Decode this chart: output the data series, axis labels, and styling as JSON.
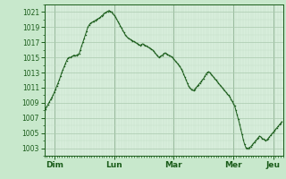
{
  "background_color": "#c8e8cc",
  "plot_bg_color": "#d8eedc",
  "grid_major_color": "#aacaae",
  "grid_minor_color": "#c0dcc4",
  "line_color": "#1a5c1a",
  "marker_color": "#1a5c1a",
  "ylabel_values": [
    1003,
    1005,
    1007,
    1009,
    1011,
    1013,
    1015,
    1017,
    1019,
    1021
  ],
  "ylim": [
    1002.0,
    1022.0
  ],
  "xlim": [
    0,
    192
  ],
  "x_ticks": [
    8,
    56,
    104,
    152,
    184
  ],
  "x_tick_labels": [
    "Dim",
    "Lun",
    "Mar",
    "Mer",
    "Jeu"
  ],
  "day_lines_x": [
    8,
    56,
    104,
    152,
    184
  ],
  "pressure_data": [
    1008.0,
    1008.2,
    1008.5,
    1008.8,
    1009.1,
    1009.4,
    1009.7,
    1010.0,
    1010.4,
    1010.8,
    1011.2,
    1011.6,
    1012.0,
    1012.5,
    1013.0,
    1013.4,
    1013.8,
    1014.2,
    1014.6,
    1014.9,
    1015.0,
    1015.0,
    1015.1,
    1015.2,
    1015.3,
    1015.2,
    1015.3,
    1015.4,
    1015.5,
    1016.0,
    1016.5,
    1017.0,
    1017.5,
    1018.0,
    1018.5,
    1019.0,
    1019.3,
    1019.5,
    1019.6,
    1019.7,
    1019.8,
    1019.9,
    1020.0,
    1020.1,
    1020.2,
    1020.3,
    1020.5,
    1020.6,
    1020.8,
    1020.9,
    1021.0,
    1021.1,
    1021.2,
    1021.1,
    1021.0,
    1020.8,
    1020.6,
    1020.4,
    1020.1,
    1019.8,
    1019.5,
    1019.2,
    1018.9,
    1018.6,
    1018.3,
    1018.0,
    1017.8,
    1017.6,
    1017.5,
    1017.4,
    1017.3,
    1017.2,
    1017.1,
    1017.0,
    1016.9,
    1016.8,
    1016.7,
    1016.6,
    1016.7,
    1016.8,
    1016.7,
    1016.6,
    1016.5,
    1016.4,
    1016.3,
    1016.2,
    1016.1,
    1016.0,
    1015.8,
    1015.6,
    1015.4,
    1015.2,
    1015.0,
    1015.1,
    1015.2,
    1015.3,
    1015.5,
    1015.6,
    1015.5,
    1015.4,
    1015.3,
    1015.2,
    1015.1,
    1015.0,
    1014.8,
    1014.6,
    1014.4,
    1014.2,
    1014.0,
    1013.8,
    1013.5,
    1013.2,
    1012.8,
    1012.4,
    1012.0,
    1011.6,
    1011.2,
    1011.0,
    1010.8,
    1010.7,
    1010.6,
    1010.8,
    1011.0,
    1011.2,
    1011.4,
    1011.6,
    1011.8,
    1012.0,
    1012.2,
    1012.5,
    1012.8,
    1013.0,
    1013.1,
    1013.0,
    1012.8,
    1012.6,
    1012.4,
    1012.2,
    1012.0,
    1011.8,
    1011.6,
    1011.4,
    1011.2,
    1011.0,
    1010.8,
    1010.6,
    1010.4,
    1010.2,
    1010.0,
    1009.8,
    1009.5,
    1009.2,
    1008.9,
    1008.6,
    1008.0,
    1007.4,
    1006.8,
    1006.2,
    1005.5,
    1004.8,
    1004.1,
    1003.5,
    1003.1,
    1003.0,
    1003.0,
    1003.1,
    1003.2,
    1003.4,
    1003.6,
    1003.8,
    1004.0,
    1004.2,
    1004.4,
    1004.6,
    1004.5,
    1004.3,
    1004.2,
    1004.1,
    1004.0,
    1004.1,
    1004.3,
    1004.5,
    1004.7,
    1004.9,
    1005.1,
    1005.3,
    1005.5,
    1005.7,
    1005.9,
    1006.1,
    1006.3,
    1006.5
  ]
}
